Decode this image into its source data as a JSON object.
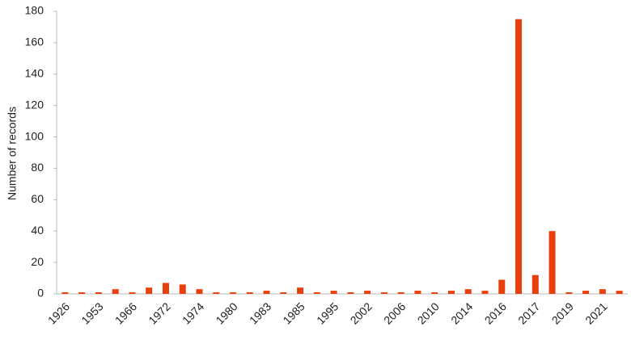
{
  "chart_data": {
    "type": "bar",
    "y_label": "Number of records",
    "categories": [
      "1926",
      null,
      "1953",
      null,
      "1966",
      null,
      "1972",
      null,
      "1974",
      null,
      "1980",
      null,
      "1983",
      null,
      "1985",
      null,
      "1995",
      null,
      "2002",
      null,
      "2006",
      null,
      "2010",
      null,
      "2014",
      null,
      "2016",
      null,
      "2017",
      null,
      "2019",
      null,
      "2021",
      null
    ],
    "values": [
      1,
      1,
      1,
      3,
      1,
      4,
      7,
      6,
      3,
      1,
      1,
      1,
      2,
      1,
      4,
      1,
      2,
      1,
      2,
      1,
      1,
      2,
      1,
      2,
      3,
      2,
      9,
      175,
      12,
      40,
      1,
      2,
      3,
      2
    ],
    "color": "#e8400c",
    "ylim": [
      0,
      180
    ],
    "yticks": [
      0,
      20,
      40,
      60,
      80,
      100,
      120,
      140,
      160,
      180
    ],
    "grid": false
  }
}
